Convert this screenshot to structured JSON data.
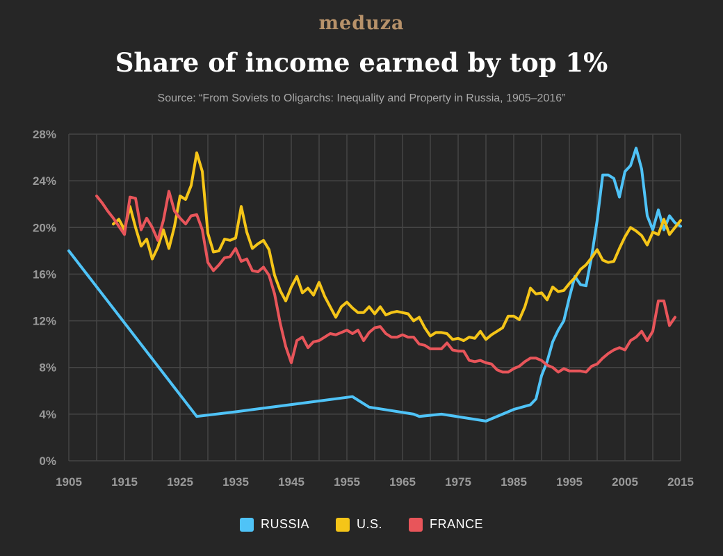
{
  "logo": "meduza",
  "chart_data": {
    "type": "line",
    "title": "Share of income earned by top 1%",
    "subtitle": "Source: “From Soviets to Oligarchs: Inequality and Property in Russia, 1905–2016”",
    "xlim": [
      1905,
      2015
    ],
    "ylim": [
      0,
      28
    ],
    "xticks": [
      1905,
      1915,
      1925,
      1935,
      1945,
      1955,
      1965,
      1975,
      1985,
      1995,
      2005,
      2015
    ],
    "yticks": [
      "0%",
      "4%",
      "8%",
      "12%",
      "16%",
      "20%",
      "24%",
      "28%"
    ],
    "ytick_values": [
      0,
      4,
      8,
      12,
      16,
      20,
      24,
      28
    ],
    "grid": true,
    "legend_position": "bottom",
    "series": [
      {
        "name": "RUSSIA",
        "color": "#4fc3f7",
        "points": [
          [
            1905,
            18.0
          ],
          [
            1928,
            3.8
          ],
          [
            1935,
            4.2
          ],
          [
            1956,
            5.5
          ],
          [
            1959,
            4.6
          ],
          [
            1967,
            4.0
          ],
          [
            1968,
            3.8
          ],
          [
            1972,
            4.0
          ],
          [
            1980,
            3.4
          ],
          [
            1985,
            4.4
          ],
          [
            1988,
            4.8
          ],
          [
            1989,
            5.3
          ],
          [
            1990,
            7.3
          ],
          [
            1991,
            8.5
          ],
          [
            1992,
            10.2
          ],
          [
            1993,
            11.2
          ],
          [
            1994,
            12.0
          ],
          [
            1995,
            14.0
          ],
          [
            1996,
            15.8
          ],
          [
            1997,
            15.1
          ],
          [
            1998,
            15.0
          ],
          [
            1999,
            17.5
          ],
          [
            2000,
            20.6
          ],
          [
            2001,
            24.5
          ],
          [
            2002,
            24.5
          ],
          [
            2003,
            24.2
          ],
          [
            2004,
            22.6
          ],
          [
            2005,
            24.8
          ],
          [
            2006,
            25.3
          ],
          [
            2007,
            26.8
          ],
          [
            2008,
            25.0
          ],
          [
            2009,
            21.0
          ],
          [
            2010,
            19.8
          ],
          [
            2011,
            21.5
          ],
          [
            2012,
            19.8
          ],
          [
            2013,
            21.0
          ],
          [
            2014,
            20.4
          ],
          [
            2015,
            20.1
          ]
        ]
      },
      {
        "name": "U.S.",
        "color": "#f5c518",
        "points": [
          [
            1913,
            20.3
          ],
          [
            1914,
            20.7
          ],
          [
            1915,
            19.8
          ],
          [
            1916,
            21.8
          ],
          [
            1917,
            20.0
          ],
          [
            1918,
            18.4
          ],
          [
            1919,
            19.0
          ],
          [
            1920,
            17.3
          ],
          [
            1921,
            18.3
          ],
          [
            1922,
            19.8
          ],
          [
            1923,
            18.2
          ],
          [
            1924,
            20.1
          ],
          [
            1925,
            22.7
          ],
          [
            1926,
            22.4
          ],
          [
            1927,
            23.6
          ],
          [
            1928,
            26.4
          ],
          [
            1929,
            24.8
          ],
          [
            1930,
            19.5
          ],
          [
            1931,
            17.9
          ],
          [
            1932,
            18.0
          ],
          [
            1933,
            19.0
          ],
          [
            1934,
            18.9
          ],
          [
            1935,
            19.1
          ],
          [
            1936,
            21.8
          ],
          [
            1937,
            19.6
          ],
          [
            1938,
            18.2
          ],
          [
            1939,
            18.6
          ],
          [
            1940,
            18.9
          ],
          [
            1941,
            18.1
          ],
          [
            1942,
            15.9
          ],
          [
            1943,
            14.6
          ],
          [
            1944,
            13.7
          ],
          [
            1945,
            14.9
          ],
          [
            1946,
            15.8
          ],
          [
            1947,
            14.4
          ],
          [
            1948,
            14.8
          ],
          [
            1949,
            14.2
          ],
          [
            1950,
            15.3
          ],
          [
            1951,
            14.1
          ],
          [
            1952,
            13.2
          ],
          [
            1953,
            12.3
          ],
          [
            1954,
            13.2
          ],
          [
            1955,
            13.6
          ],
          [
            1956,
            13.1
          ],
          [
            1957,
            12.7
          ],
          [
            1958,
            12.7
          ],
          [
            1959,
            13.2
          ],
          [
            1960,
            12.6
          ],
          [
            1961,
            13.2
          ],
          [
            1962,
            12.5
          ],
          [
            1963,
            12.7
          ],
          [
            1964,
            12.8
          ],
          [
            1965,
            12.7
          ],
          [
            1966,
            12.6
          ],
          [
            1967,
            12.0
          ],
          [
            1968,
            12.3
          ],
          [
            1969,
            11.4
          ],
          [
            1970,
            10.7
          ],
          [
            1971,
            11.0
          ],
          [
            1972,
            11.0
          ],
          [
            1973,
            10.9
          ],
          [
            1974,
            10.4
          ],
          [
            1975,
            10.5
          ],
          [
            1976,
            10.3
          ],
          [
            1977,
            10.6
          ],
          [
            1978,
            10.5
          ],
          [
            1979,
            11.1
          ],
          [
            1980,
            10.4
          ],
          [
            1981,
            10.8
          ],
          [
            1982,
            11.1
          ],
          [
            1983,
            11.4
          ],
          [
            1984,
            12.4
          ],
          [
            1985,
            12.4
          ],
          [
            1986,
            12.1
          ],
          [
            1987,
            13.2
          ],
          [
            1988,
            14.8
          ],
          [
            1989,
            14.3
          ],
          [
            1990,
            14.4
          ],
          [
            1991,
            13.8
          ],
          [
            1992,
            14.9
          ],
          [
            1993,
            14.5
          ],
          [
            1994,
            14.6
          ],
          [
            1995,
            15.2
          ],
          [
            1996,
            15.7
          ],
          [
            1997,
            16.4
          ],
          [
            1998,
            16.8
          ],
          [
            1999,
            17.4
          ],
          [
            2000,
            18.1
          ],
          [
            2001,
            17.2
          ],
          [
            2002,
            17.0
          ],
          [
            2003,
            17.1
          ],
          [
            2004,
            18.2
          ],
          [
            2005,
            19.2
          ],
          [
            2006,
            20.0
          ],
          [
            2007,
            19.7
          ],
          [
            2008,
            19.3
          ],
          [
            2009,
            18.5
          ],
          [
            2010,
            19.6
          ],
          [
            2011,
            19.4
          ],
          [
            2012,
            20.7
          ],
          [
            2013,
            19.4
          ],
          [
            2014,
            20.0
          ],
          [
            2015,
            20.6
          ]
        ]
      },
      {
        "name": "FRANCE",
        "color": "#e8555a",
        "points": [
          [
            1910,
            22.7
          ],
          [
            1911,
            22.1
          ],
          [
            1912,
            21.4
          ],
          [
            1913,
            20.8
          ],
          [
            1914,
            20.1
          ],
          [
            1915,
            19.4
          ],
          [
            1916,
            22.6
          ],
          [
            1917,
            22.5
          ],
          [
            1918,
            19.8
          ],
          [
            1919,
            20.8
          ],
          [
            1920,
            20.0
          ],
          [
            1921,
            18.9
          ],
          [
            1922,
            20.6
          ],
          [
            1923,
            23.1
          ],
          [
            1924,
            21.4
          ],
          [
            1925,
            20.8
          ],
          [
            1926,
            20.3
          ],
          [
            1927,
            21.0
          ],
          [
            1928,
            21.1
          ],
          [
            1929,
            19.8
          ],
          [
            1930,
            17.0
          ],
          [
            1931,
            16.3
          ],
          [
            1932,
            16.8
          ],
          [
            1933,
            17.4
          ],
          [
            1934,
            17.5
          ],
          [
            1935,
            18.2
          ],
          [
            1936,
            17.1
          ],
          [
            1937,
            17.3
          ],
          [
            1938,
            16.3
          ],
          [
            1939,
            16.2
          ],
          [
            1940,
            16.6
          ],
          [
            1941,
            15.9
          ],
          [
            1942,
            14.3
          ],
          [
            1943,
            11.8
          ],
          [
            1944,
            9.8
          ],
          [
            1945,
            8.4
          ],
          [
            1946,
            10.3
          ],
          [
            1947,
            10.6
          ],
          [
            1948,
            9.7
          ],
          [
            1949,
            10.2
          ],
          [
            1950,
            10.3
          ],
          [
            1951,
            10.6
          ],
          [
            1952,
            10.9
          ],
          [
            1953,
            10.8
          ],
          [
            1954,
            11.0
          ],
          [
            1955,
            11.2
          ],
          [
            1956,
            10.9
          ],
          [
            1957,
            11.2
          ],
          [
            1958,
            10.3
          ],
          [
            1959,
            11.0
          ],
          [
            1960,
            11.4
          ],
          [
            1961,
            11.5
          ],
          [
            1962,
            10.9
          ],
          [
            1963,
            10.6
          ],
          [
            1964,
            10.6
          ],
          [
            1965,
            10.8
          ],
          [
            1966,
            10.6
          ],
          [
            1967,
            10.6
          ],
          [
            1968,
            10.0
          ],
          [
            1969,
            9.9
          ],
          [
            1970,
            9.6
          ],
          [
            1971,
            9.6
          ],
          [
            1972,
            9.6
          ],
          [
            1973,
            10.1
          ],
          [
            1974,
            9.5
          ],
          [
            1975,
            9.4
          ],
          [
            1976,
            9.4
          ],
          [
            1977,
            8.6
          ],
          [
            1978,
            8.5
          ],
          [
            1979,
            8.6
          ],
          [
            1980,
            8.4
          ],
          [
            1981,
            8.3
          ],
          [
            1982,
            7.8
          ],
          [
            1983,
            7.6
          ],
          [
            1984,
            7.6
          ],
          [
            1985,
            7.9
          ],
          [
            1986,
            8.1
          ],
          [
            1987,
            8.5
          ],
          [
            1988,
            8.8
          ],
          [
            1989,
            8.8
          ],
          [
            1990,
            8.6
          ],
          [
            1991,
            8.2
          ],
          [
            1992,
            8.0
          ],
          [
            1993,
            7.6
          ],
          [
            1994,
            7.9
          ],
          [
            1995,
            7.7
          ],
          [
            1996,
            7.7
          ],
          [
            1997,
            7.7
          ],
          [
            1998,
            7.6
          ],
          [
            1999,
            8.1
          ],
          [
            2000,
            8.3
          ],
          [
            2001,
            8.8
          ],
          [
            2002,
            9.2
          ],
          [
            2003,
            9.5
          ],
          [
            2004,
            9.7
          ],
          [
            2005,
            9.5
          ],
          [
            2006,
            10.3
          ],
          [
            2007,
            10.6
          ],
          [
            2008,
            11.1
          ],
          [
            2009,
            10.3
          ],
          [
            2010,
            11.1
          ],
          [
            2011,
            13.7
          ],
          [
            2012,
            13.7
          ],
          [
            2013,
            11.6
          ],
          [
            2014,
            12.3
          ]
        ]
      }
    ]
  }
}
